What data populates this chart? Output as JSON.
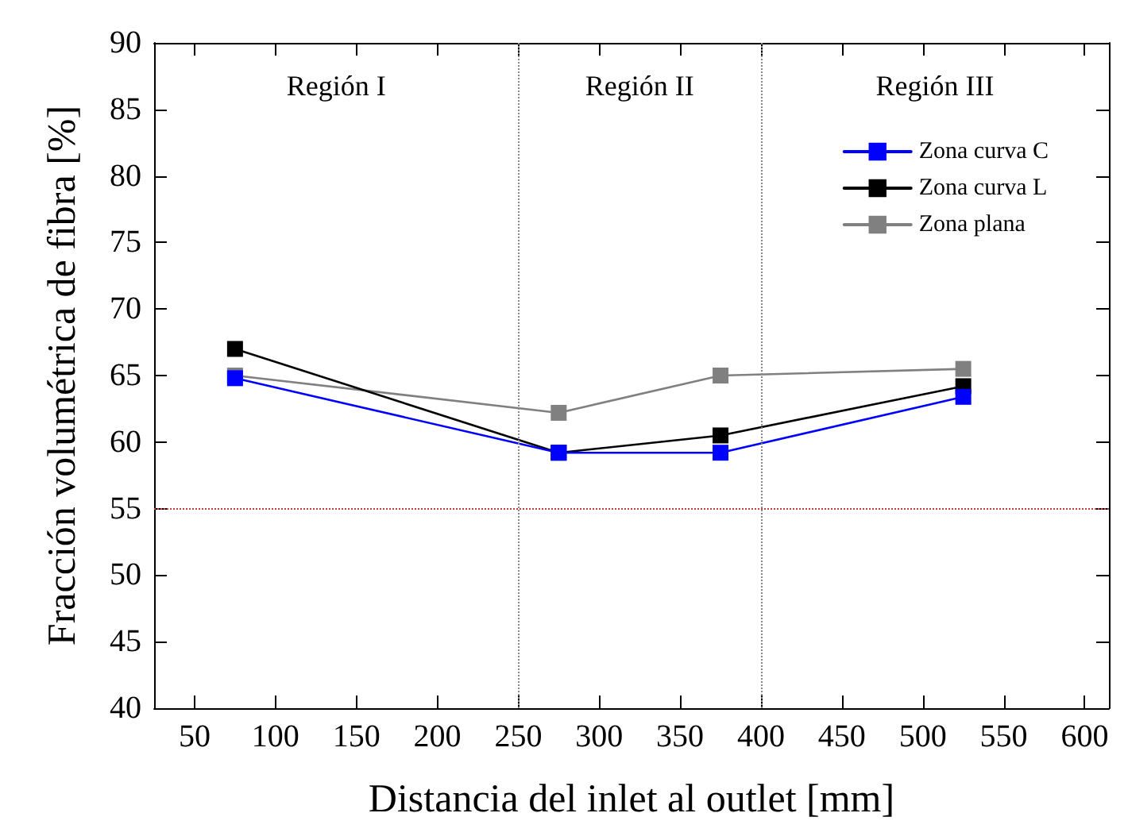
{
  "chart_data": {
    "type": "line",
    "xlabel": "Distancia del inlet al outlet [mm]",
    "ylabel": "Fracción volumétrica de fibra [%]",
    "x": [
      75,
      275,
      375,
      525
    ],
    "series": [
      {
        "name": "Zona curva C",
        "color": "#0000ff",
        "values": [
          64.8,
          59.2,
          59.2,
          63.4
        ]
      },
      {
        "name": "Zona curva L",
        "color": "#000000",
        "values": [
          67,
          59.2,
          60.5,
          64.2
        ]
      },
      {
        "name": "Zona plana",
        "color": "#808080",
        "values": [
          65,
          62.2,
          65,
          65.5
        ]
      }
    ],
    "xlim": [
      25,
      615
    ],
    "xticks": [
      50,
      100,
      150,
      200,
      250,
      300,
      350,
      400,
      450,
      500,
      550,
      600
    ],
    "ylim": [
      40,
      90
    ],
    "yticks": [
      40,
      45,
      50,
      55,
      60,
      65,
      70,
      75,
      80,
      85,
      90
    ],
    "ref_lines": [
      {
        "axis": "x",
        "value": 250,
        "color": "#888888",
        "line_style": "dotted"
      },
      {
        "axis": "x",
        "value": 400,
        "color": "#888888",
        "line_style": "dotted"
      },
      {
        "axis": "y",
        "value": 55,
        "color": "#c04040",
        "line_style": "dotted"
      }
    ],
    "annotations": [
      "Región I",
      "Región II",
      "Región III"
    ],
    "grid": false,
    "legend": "top right",
    "marker": "square",
    "line_style": "solid"
  }
}
